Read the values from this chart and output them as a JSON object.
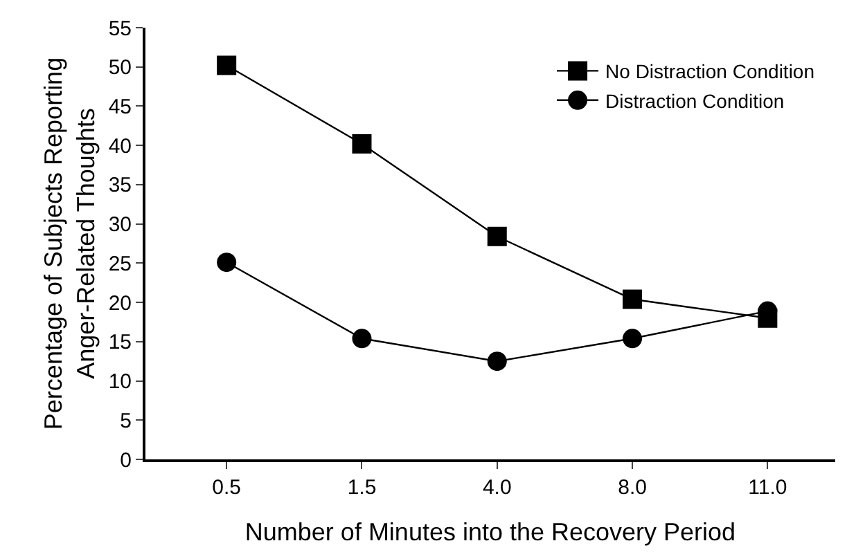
{
  "chart_data": {
    "type": "line",
    "xlabel": "Number of Minutes into the Recovery Period",
    "ylabel": "Percentage of Subjects Reporting\nAnger-Related Thoughts",
    "categories": [
      "0.5",
      "1.5",
      "4.0",
      "8.0",
      "11.0"
    ],
    "series": [
      {
        "name": "No Distraction Condition",
        "color": "#000000",
        "marker": "square",
        "values": [
          50.2,
          40.2,
          28.4,
          20.4,
          18.0
        ]
      },
      {
        "name": "Distraction Condition",
        "color": "#000000",
        "marker": "circle",
        "values": [
          25.1,
          15.4,
          12.5,
          15.4,
          18.9
        ]
      }
    ],
    "ylim": [
      0,
      55
    ],
    "yticks": [
      0,
      5,
      10,
      15,
      20,
      25,
      30,
      35,
      40,
      45,
      50,
      55
    ],
    "legend": "top right",
    "line_style": "solid"
  }
}
